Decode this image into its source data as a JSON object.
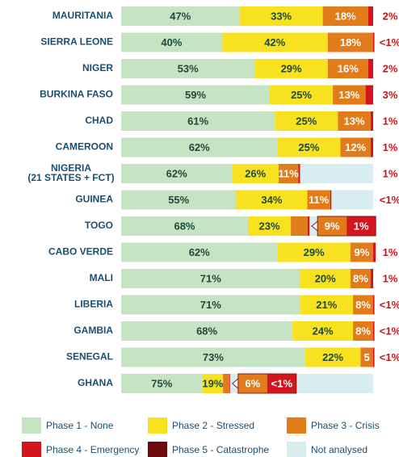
{
  "chart_data": {
    "type": "stacked_bar_horizontal",
    "categories": [
      "MAURITANIA",
      "SIERRA LEONE",
      "NIGER",
      "BURKINA FASO",
      "CHAD",
      "CAMEROON",
      [
        "NIGERIA",
        "(21 STATES + FCT)"
      ],
      "GUINEA",
      "TOGO",
      "CABO VERDE",
      "MALI",
      "LIBERIA",
      "GAMBIA",
      "SENEGAL",
      "GHANA"
    ],
    "series": [
      {
        "name": "Phase 1 - None",
        "color": "#c6e4c4",
        "values": [
          47,
          40,
          53,
          59,
          61,
          62,
          62,
          55,
          68,
          62,
          71,
          71,
          68,
          73,
          75
        ],
        "value_labels": [
          "47%",
          "40%",
          "53%",
          "59%",
          "61%",
          "62%",
          "62%",
          "55%",
          "68%",
          "62%",
          "71%",
          "71%",
          "68%",
          "73%",
          "75%"
        ]
      },
      {
        "name": "Phase 2 - Stressed",
        "color": "#f8e11f",
        "values": [
          33,
          42,
          29,
          25,
          25,
          25,
          26,
          34,
          23,
          29,
          20,
          21,
          24,
          22,
          19
        ],
        "value_labels": [
          "33%",
          "42%",
          "29%",
          "25%",
          "25%",
          "25%",
          "26%",
          "34%",
          "23%",
          "29%",
          "20%",
          "21%",
          "24%",
          "22%",
          "19%"
        ]
      },
      {
        "name": "Phase 3 - Crisis",
        "color": "#e27c1b",
        "values": [
          18,
          18,
          16,
          13,
          13,
          12,
          11,
          11,
          9,
          9,
          8,
          8,
          8,
          5,
          6
        ],
        "value_labels": [
          "18%",
          "18%",
          "16%",
          "13%",
          "13%",
          "12%",
          "11%",
          "11%",
          "9%",
          "9%",
          "8%",
          "8%",
          "8%",
          "5",
          "6%"
        ]
      },
      {
        "name": "Phase 4 - Emergency",
        "color": "#d3151e",
        "values": [
          2,
          0.5,
          2,
          3,
          1,
          1,
          1,
          0.5,
          1,
          1,
          1,
          0.5,
          0.5,
          0.5,
          0.5
        ],
        "value_labels": [
          "2%",
          "<1%",
          "2%",
          "3%",
          "1%",
          "1%",
          "1%",
          "<1%",
          "1%",
          "1%",
          "1%",
          "<1%",
          "<1%",
          "<1%",
          "<1%"
        ]
      },
      {
        "name": "Phase 5 - Catastrophe",
        "color": "#6e0b0e",
        "values": [
          null,
          null,
          null,
          null,
          null,
          null,
          null,
          null,
          null,
          null,
          null,
          null,
          null,
          null,
          null
        ]
      },
      {
        "name": "Not analysed",
        "color": "#d8edf0",
        "values": [
          0,
          0,
          0,
          0,
          0,
          0,
          29,
          17,
          26,
          0,
          0,
          0,
          0,
          0,
          57
        ]
      }
    ]
  }
}
